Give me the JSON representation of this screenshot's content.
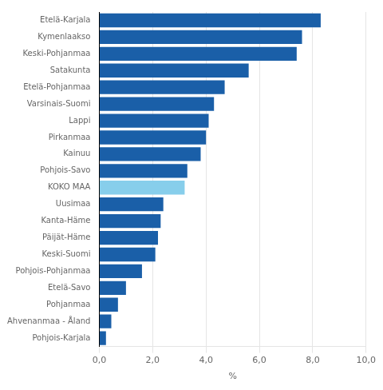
{
  "chart_data": {
    "type": "bar",
    "orientation": "horizontal",
    "categories": [
      "Etelä-Karjala",
      "Kymenlaakso",
      "Keski-Pohjanmaa",
      "Satakunta",
      "Etelä-Pohjanmaa",
      "Varsinais-Suomi",
      "Lappi",
      "Pirkanmaa",
      "Kainuu",
      "Pohjois-Savo",
      "KOKO MAA",
      "Uusimaa",
      "Kanta-Häme",
      "Päijät-Häme",
      "Keski-Suomi",
      "Pohjois-Pohjanmaa",
      "Etelä-Savo",
      "Pohjanmaa",
      "Ahvenanmaa - Åland",
      "Pohjois-Karjala"
    ],
    "values": [
      8.3,
      7.6,
      7.4,
      5.6,
      4.7,
      4.3,
      4.1,
      4.0,
      3.8,
      3.3,
      3.2,
      2.4,
      2.3,
      2.2,
      2.1,
      1.6,
      1.0,
      0.7,
      0.45,
      0.25
    ],
    "colors": [
      "#1a5fa8",
      "#1a5fa8",
      "#1a5fa8",
      "#1a5fa8",
      "#1a5fa8",
      "#1a5fa8",
      "#1a5fa8",
      "#1a5fa8",
      "#1a5fa8",
      "#1a5fa8",
      "#87ceeb",
      "#1a5fa8",
      "#1a5fa8",
      "#1a5fa8",
      "#1a5fa8",
      "#1a5fa8",
      "#1a5fa8",
      "#1a5fa8",
      "#1a5fa8",
      "#1a5fa8"
    ],
    "xlabel": "%",
    "xlim": [
      0,
      10.0
    ],
    "xticks": [
      {
        "value": 0,
        "label": "0,0"
      },
      {
        "value": 2.0,
        "label": "2,0"
      },
      {
        "value": 4.0,
        "label": "4,0"
      },
      {
        "value": 6.0,
        "label": "6,0"
      },
      {
        "value": 8.0,
        "label": "8,0"
      },
      {
        "value": 10.0,
        "label": "10,0"
      }
    ],
    "grid": true
  }
}
